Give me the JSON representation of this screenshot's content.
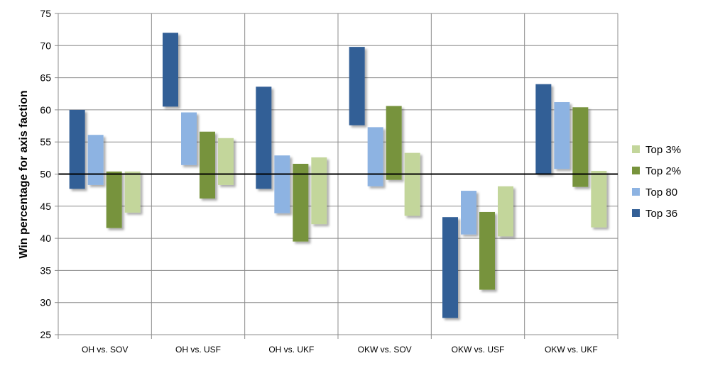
{
  "chart_data": {
    "type": "bar",
    "subtype": "floating-range",
    "title": "",
    "xlabel": "",
    "ylabel": "Win percentage for axis faction",
    "ylim": [
      25,
      75
    ],
    "ytick_step": 5,
    "yticks": [
      "25",
      "30",
      "35",
      "40",
      "45",
      "50",
      "55",
      "60",
      "65",
      "70",
      "75"
    ],
    "grid": true,
    "reference_line": 50,
    "legend_position": "right",
    "categories": [
      "OH vs. SOV",
      "OH vs. USF",
      "OH vs. UKF",
      "OKW vs. SOV",
      "OKW vs. USF",
      "OKW vs. UKF"
    ],
    "series": [
      {
        "name": "Top 36",
        "color": "#335F96",
        "ranges": [
          [
            47.7,
            60.0
          ],
          [
            60.5,
            72.0
          ],
          [
            47.7,
            63.6
          ],
          [
            57.6,
            69.8
          ],
          [
            27.6,
            43.3
          ],
          [
            50.0,
            64.0
          ]
        ]
      },
      {
        "name": "Top 80",
        "color": "#8DB3E2",
        "ranges": [
          [
            48.3,
            56.1
          ],
          [
            51.4,
            59.6
          ],
          [
            43.9,
            52.9
          ],
          [
            48.1,
            57.3
          ],
          [
            40.6,
            47.4
          ],
          [
            50.8,
            61.2
          ]
        ]
      },
      {
        "name": "Top 2%",
        "color": "#77933C",
        "ranges": [
          [
            41.6,
            50.4
          ],
          [
            46.2,
            56.6
          ],
          [
            39.5,
            51.6
          ],
          [
            49.1,
            60.6
          ],
          [
            32.0,
            44.1
          ],
          [
            48.0,
            60.4
          ]
        ]
      },
      {
        "name": "Top 3%",
        "color": "#C3D69B",
        "ranges": [
          [
            44.0,
            50.4
          ],
          [
            48.3,
            55.6
          ],
          [
            42.2,
            52.6
          ],
          [
            43.5,
            53.3
          ],
          [
            40.3,
            48.1
          ],
          [
            41.7,
            50.5
          ]
        ]
      }
    ],
    "legend_order": [
      "Top 3%",
      "Top 2%",
      "Top 80",
      "Top 36"
    ]
  }
}
